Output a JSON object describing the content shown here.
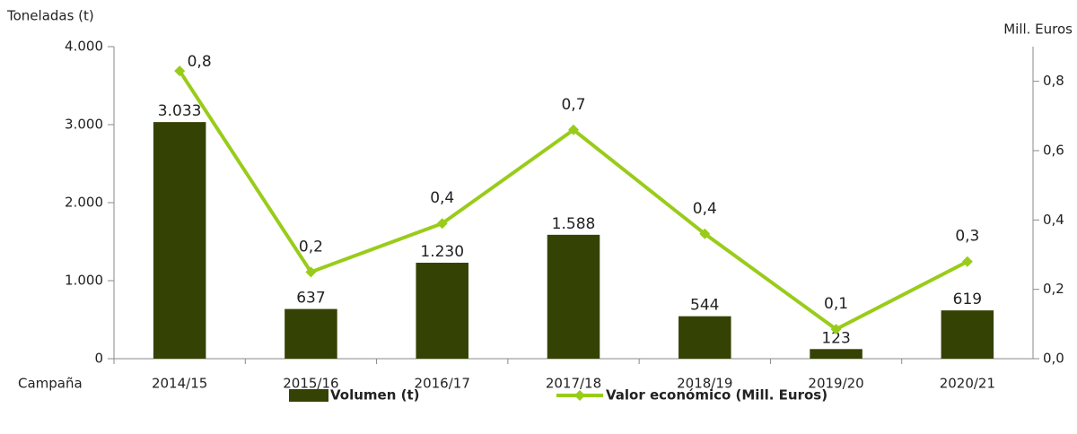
{
  "chart_data": {
    "type": "bar",
    "y_label": "Toneladas (t)",
    "y2_label": "Mill. Euros",
    "x_label": "Campaña",
    "categories": [
      "2014/15",
      "2015/16",
      "2016/17",
      "2017/18",
      "2018/19",
      "2019/20",
      "2020/21"
    ],
    "series": [
      {
        "name": "Volumen (t)",
        "type": "bar",
        "color": "#344304",
        "values": [
          3033,
          637,
          1230,
          1588,
          544,
          123,
          619
        ],
        "value_labels": [
          "3.033",
          "637",
          "1.230",
          "1.588",
          "544",
          "123",
          "619"
        ]
      },
      {
        "name": "Valor económico (Mill. Euros)",
        "type": "line",
        "axis": "y2",
        "color": "#99cc1a",
        "values": [
          0.83,
          0.25,
          0.39,
          0.66,
          0.36,
          0.085,
          0.28
        ],
        "value_labels": [
          "0,8",
          "0,2",
          "0,4",
          "0,7",
          "0,4",
          "0,1",
          "0,3"
        ]
      }
    ],
    "ylim": [
      0,
      4000
    ],
    "yticks": [
      0,
      {
        "value": 1000,
        "label": "1.000"
      },
      {
        "value": 2000,
        "label": "2.000"
      },
      {
        "value": 3000,
        "label": "3.000"
      },
      {
        "value": 4000,
        "label": "4.000"
      }
    ],
    "y2lim": [
      0,
      0.9
    ],
    "y2ticks": [
      {
        "value": 0,
        "label": "0,0"
      },
      {
        "value": 0.2,
        "label": "0,2"
      },
      {
        "value": 0.4,
        "label": "0,4"
      },
      {
        "value": 0.6,
        "label": "0,6"
      },
      {
        "value": 0.8,
        "label": "0,8"
      }
    ]
  }
}
